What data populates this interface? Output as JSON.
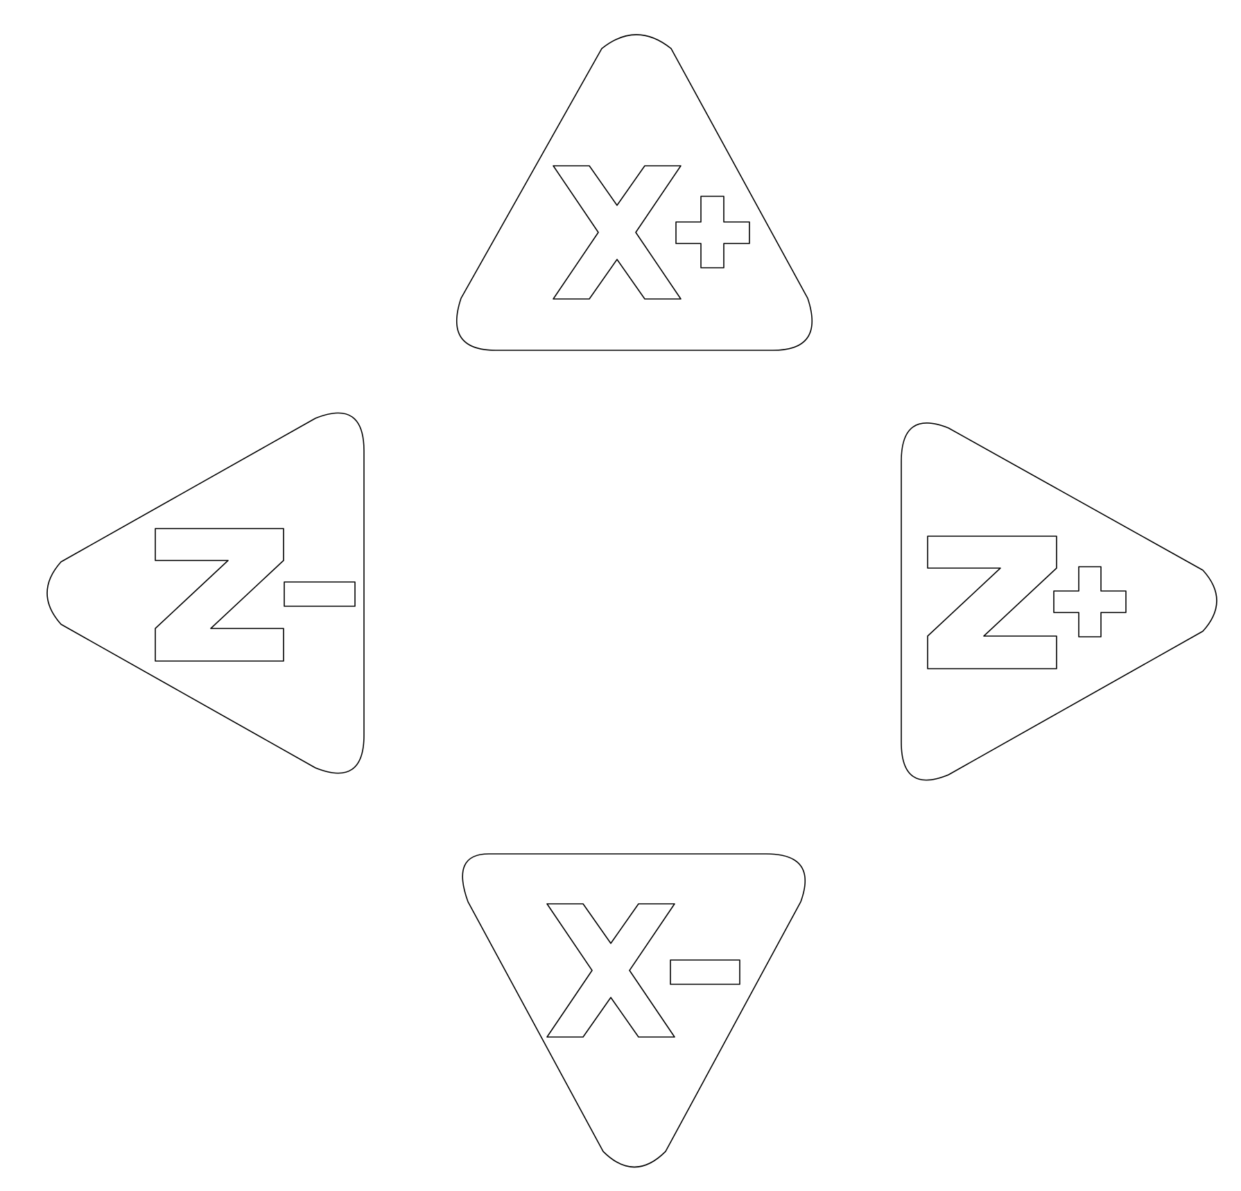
{
  "buttons": {
    "x_plus": {
      "label": "X+",
      "axis": "X",
      "sign": "+",
      "direction": "up",
      "icon": "triangle-up-icon"
    },
    "x_minus": {
      "label": "X-",
      "axis": "X",
      "sign": "-",
      "direction": "down",
      "icon": "triangle-down-icon"
    },
    "z_minus": {
      "label": "Z-",
      "axis": "Z",
      "sign": "-",
      "direction": "left",
      "icon": "triangle-left-icon"
    },
    "z_plus": {
      "label": "Z+",
      "axis": "Z",
      "sign": "+",
      "direction": "right",
      "icon": "triangle-right-icon"
    }
  },
  "colors": {
    "fill": "#ffffff",
    "stroke": "#000000",
    "background": "#ffffff"
  }
}
